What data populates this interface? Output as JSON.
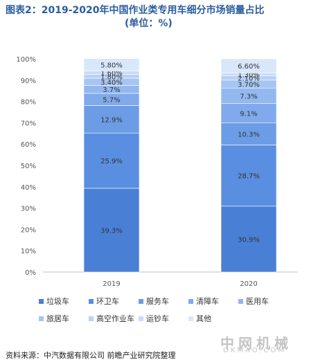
{
  "title": {
    "line1": "图表2：2019-2020年中国作业类专用车细分市场销量占比",
    "line2": "(单位：%)"
  },
  "chart_data": {
    "type": "bar",
    "stacked": true,
    "categories": [
      "2019",
      "2020"
    ],
    "ylim": [
      0,
      100
    ],
    "yticks": [
      "0%",
      "10%",
      "20%",
      "30%",
      "40%",
      "50%",
      "60%",
      "70%",
      "80%",
      "90%",
      "100%"
    ],
    "grid": false,
    "legend_position": "bottom",
    "series": [
      {
        "name": "垃圾车",
        "values": [
          39.3,
          30.9
        ],
        "labels": [
          "39.3%",
          "30.9%"
        ],
        "color": "#4a7fd6"
      },
      {
        "name": "环卫车",
        "values": [
          25.9,
          28.7
        ],
        "labels": [
          "25.9%",
          "28.7%"
        ],
        "color": "#5a8ee0"
      },
      {
        "name": "服务车",
        "values": [
          12.9,
          10.3
        ],
        "labels": [
          "12.9%",
          "10.3%"
        ],
        "color": "#6d9ce6"
      },
      {
        "name": "清障车",
        "values": [
          5.7,
          9.1
        ],
        "labels": [
          "5.7%",
          "9.1%"
        ],
        "color": "#80aaeb"
      },
      {
        "name": "医用车",
        "values": [
          3.7,
          7.3
        ],
        "labels": [
          "3.7%",
          "7.3%"
        ],
        "color": "#93b8ef"
      },
      {
        "name": "旅居车",
        "values": [
          3.4,
          3.7
        ],
        "labels": [
          "3.40%",
          "3.70%"
        ],
        "color": "#a6c5f2"
      },
      {
        "name": "高空作业车",
        "values": [
          1.8,
          2.1
        ],
        "labels": [
          "1.80%",
          "2.10%"
        ],
        "color": "#b8d1f5"
      },
      {
        "name": "运钞车",
        "values": [
          1.6,
          1.3
        ],
        "labels": [
          "1.60%",
          "1.30%"
        ],
        "color": "#c9dcf8"
      },
      {
        "name": "其他",
        "values": [
          5.8,
          6.6
        ],
        "labels": [
          "5.80%",
          "6.60%"
        ],
        "color": "#d9e7fb"
      }
    ]
  },
  "source": "资料来源：中汽数据有限公司 前瞻产业研究院整理",
  "watermark": {
    "cn": "中网机械",
    "en": "OKMAO.COM"
  }
}
